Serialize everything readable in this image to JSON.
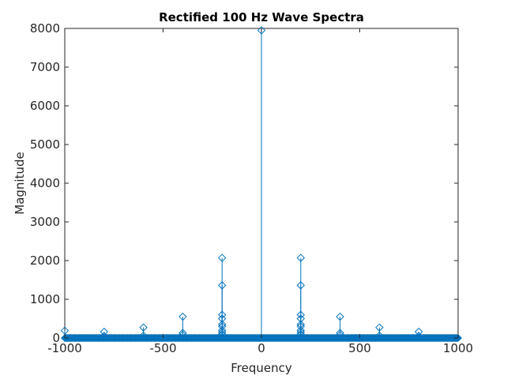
{
  "chart_data": {
    "type": "stem",
    "title": "Rectified 100 Hz Wave Spectra",
    "xlabel": "Frequency",
    "ylabel": "Magnitude",
    "xlim": [
      -1000,
      1000
    ],
    "ylim": [
      0,
      8000
    ],
    "xticks": [
      -1000,
      -500,
      0,
      500,
      1000
    ],
    "yticks": [
      0,
      1000,
      2000,
      3000,
      4000,
      5000,
      6000,
      7000,
      8000
    ],
    "grid": false,
    "series_color": "#0072bd",
    "marker": "diamond",
    "series": [
      {
        "points": [
          {
            "x": 0,
            "y": 7950
          },
          {
            "x": -200,
            "y": 2070
          },
          {
            "x": -200,
            "y": 1360
          },
          {
            "x": -200,
            "y": 600
          },
          {
            "x": -200,
            "y": 500
          },
          {
            "x": -200,
            "y": 350
          },
          {
            "x": -200,
            "y": 300
          },
          {
            "x": -200,
            "y": 200
          },
          {
            "x": -200,
            "y": 150
          },
          {
            "x": -200,
            "y": 100
          },
          {
            "x": 200,
            "y": 2070
          },
          {
            "x": 200,
            "y": 1360
          },
          {
            "x": 200,
            "y": 600
          },
          {
            "x": 200,
            "y": 500
          },
          {
            "x": 200,
            "y": 350
          },
          {
            "x": 200,
            "y": 300
          },
          {
            "x": 200,
            "y": 200
          },
          {
            "x": 200,
            "y": 150
          },
          {
            "x": 200,
            "y": 100
          },
          {
            "x": -400,
            "y": 550
          },
          {
            "x": -400,
            "y": 130
          },
          {
            "x": -400,
            "y": 80
          },
          {
            "x": 400,
            "y": 550
          },
          {
            "x": 400,
            "y": 130
          },
          {
            "x": 400,
            "y": 80
          },
          {
            "x": -600,
            "y": 270
          },
          {
            "x": -600,
            "y": 60
          },
          {
            "x": 600,
            "y": 270
          },
          {
            "x": 600,
            "y": 60
          },
          {
            "x": -800,
            "y": 160
          },
          {
            "x": -800,
            "y": 50
          },
          {
            "x": 800,
            "y": 160
          },
          {
            "x": 800,
            "y": 50
          },
          {
            "x": -1000,
            "y": 190
          }
        ],
        "baseline_markers": {
          "x_start": -1000,
          "x_end": 1000,
          "x_step": 5,
          "y": 0
        }
      }
    ]
  }
}
